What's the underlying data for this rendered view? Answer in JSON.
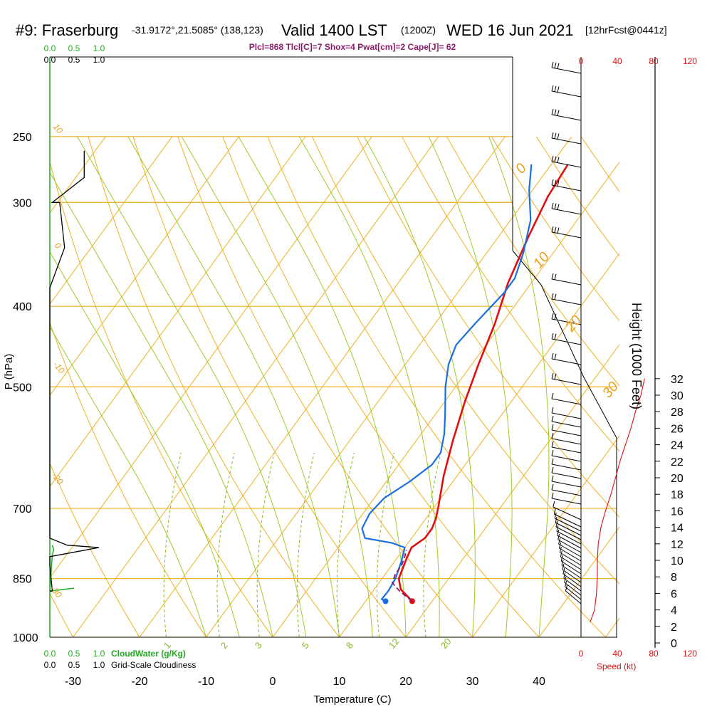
{
  "header": {
    "station": "#9: Fraserburg",
    "coords": "-31.9172°,21.5085° (138,123)",
    "valid_main": "Valid 1400 LST",
    "valid_utc": "(1200Z)",
    "date": "WED 16 Jun 2021",
    "forecast": "[12hrFcst@0441z]",
    "indices": "Plcl=868 Tlcl[C]=7 Shox=4 Pwat[cm]=2 Cape[J]= 62"
  },
  "axes": {
    "y_title": "P (hPa)",
    "x_title": "Temperature (C)",
    "height_title": "Height (1000 Feet)",
    "speed_title": "Speed (kt)",
    "cloud_water_title": "CloudWater (g/Kg)",
    "cloudiness_title": "Grid-Scale Cloudiness",
    "pressure_ticks": [
      "250",
      "300",
      "400",
      "500",
      "700",
      "850",
      "1000"
    ],
    "temp_ticks": [
      "-30",
      "-20",
      "-10",
      "0",
      "10",
      "20",
      "30",
      "40"
    ],
    "height_ticks": [
      "32",
      "30",
      "28",
      "26",
      "24",
      "22",
      "20",
      "18",
      "16",
      "14",
      "12",
      "10",
      "8",
      "6",
      "4",
      "2",
      "0"
    ],
    "speed_ticks": [
      "0",
      "40",
      "80",
      "120"
    ],
    "cloud_ticks": [
      "0.0",
      "0.5",
      "1.0"
    ],
    "isotherm_labels": [
      "0",
      "10",
      "20",
      "30"
    ],
    "dry_adiabat_labels": [
      "0",
      "-10",
      "-20",
      "-30",
      "10"
    ],
    "mixing_ratio_labels": [
      "1",
      "2",
      "3",
      "5",
      "8",
      "12",
      "20"
    ]
  },
  "colors": {
    "temperature": "#e01010",
    "dewpoint": "#1a6fe0",
    "parcel": "#8b1a6b",
    "isobar": "#f0b020",
    "dry_adiabat": "#f0b020",
    "moist_adiabat": "#9ccc2a",
    "mixing_ratio": "#88bb22",
    "cloud_water": "#22aa22",
    "wind_speed": "#e01010"
  },
  "chart_data": {
    "type": "line",
    "title": "#9: Fraserburg",
    "subtitle": "Plcl=868 Tlcl[C]=7 Shox=4 Pwat[cm]=2 Cape[J]= 62",
    "xlabel": "Temperature (C)",
    "ylabel": "P (hPa)",
    "y_scale": "log",
    "xlim": [
      -35,
      50
    ],
    "ylim": [
      1000,
      250
    ],
    "series": [
      {
        "name": "temperature",
        "points": [
          [
            17,
            905
          ],
          [
            14,
            876
          ],
          [
            12.5,
            850
          ],
          [
            11.5,
            805
          ],
          [
            11.0,
            780
          ],
          [
            12.0,
            760
          ],
          [
            12.0,
            740
          ],
          [
            11.5,
            720
          ],
          [
            10.5,
            695
          ],
          [
            8.0,
            640
          ],
          [
            5.5,
            580
          ],
          [
            3.0,
            520
          ],
          [
            1.0,
            470
          ],
          [
            -1.0,
            420
          ],
          [
            -3.5,
            375
          ],
          [
            -5.5,
            330
          ],
          [
            -7.0,
            295
          ],
          [
            -7.5,
            270
          ]
        ]
      },
      {
        "name": "dewpoint",
        "points": [
          [
            13.0,
            905
          ],
          [
            12.2,
            900
          ],
          [
            12.3,
            880
          ],
          [
            12.0,
            850
          ],
          [
            11.0,
            810
          ],
          [
            10.0,
            780
          ],
          [
            7.5,
            770
          ],
          [
            3.0,
            760
          ],
          [
            1.5,
            740
          ],
          [
            1.0,
            710
          ],
          [
            1.5,
            680
          ],
          [
            3.5,
            650
          ],
          [
            5.0,
            620
          ],
          [
            5.0,
            600
          ],
          [
            3.5,
            570
          ],
          [
            1.5,
            540
          ],
          [
            -1.5,
            500
          ],
          [
            -3.5,
            470
          ],
          [
            -4.5,
            445
          ],
          [
            -4.0,
            420
          ],
          [
            -3.0,
            385
          ],
          [
            -3.0,
            370
          ],
          [
            -4.5,
            345
          ],
          [
            -7.0,
            315
          ],
          [
            -10.5,
            290
          ],
          [
            -13.0,
            270
          ]
        ]
      },
      {
        "name": "parcel",
        "points": [
          [
            17,
            905
          ],
          [
            14.0,
            880
          ],
          [
            12.0,
            860
          ],
          [
            11.5,
            840
          ],
          [
            11.5,
            820
          ],
          [
            11.0,
            800
          ],
          [
            10.5,
            785
          ]
        ]
      }
    ],
    "cloud_water_profile": {
      "label": "CloudWater (g/Kg)",
      "points": [
        [
          0.0,
          880
        ],
        [
          0.05,
          795
        ],
        [
          0.08,
          785
        ],
        [
          0.05,
          775
        ]
      ]
    },
    "cloudiness_profile": {
      "label": "Grid-Scale Cloudiness",
      "points": [
        [
          0,
          880
        ],
        [
          0.05,
          880
        ],
        [
          0,
          820
        ],
        [
          0,
          800
        ],
        [
          1.0,
          780
        ],
        [
          0.35,
          775
        ],
        [
          0,
          760
        ],
        [
          0,
          380
        ],
        [
          0.3,
          340
        ],
        [
          0.2,
          300
        ],
        [
          0.05,
          300
        ],
        [
          0.7,
          280
        ],
        [
          0.7,
          260
        ]
      ]
    },
    "wind_speed_kt": {
      "label": "Speed (kt)",
      "height_kft": [
        2.5,
        4,
        6,
        8,
        10,
        12,
        14,
        16,
        18,
        20,
        22,
        24,
        26,
        28,
        30,
        32
      ],
      "speed": [
        10,
        15,
        17,
        18,
        18,
        19,
        22,
        27,
        33,
        38,
        43,
        49,
        55,
        60,
        66,
        70
      ]
    }
  }
}
